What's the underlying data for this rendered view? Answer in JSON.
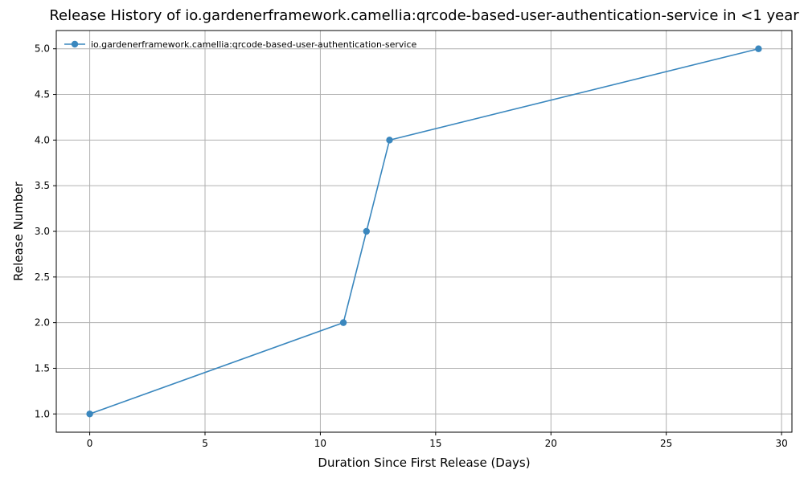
{
  "chart_data": {
    "type": "line",
    "title": "Release History of io.gardenerframework.camellia:qrcode-based-user-authentication-service in <1 year",
    "xlabel": "Duration Since First Release (Days)",
    "ylabel": "Release Number",
    "xlim": [
      -1.45,
      30.45
    ],
    "ylim": [
      0.8,
      5.2
    ],
    "xticks": [
      0,
      5,
      10,
      15,
      20,
      25,
      30
    ],
    "xtick_labels": [
      "0",
      "5",
      "10",
      "15",
      "20",
      "25",
      "30"
    ],
    "yticks": [
      1.0,
      1.5,
      2.0,
      2.5,
      3.0,
      3.5,
      4.0,
      4.5,
      5.0
    ],
    "ytick_labels": [
      "1.0",
      "1.5",
      "2.0",
      "2.5",
      "3.0",
      "3.5",
      "4.0",
      "4.5",
      "5.0"
    ],
    "grid": true,
    "legend_position": "top-left",
    "series": [
      {
        "name": "io.gardenerframework.camellia:qrcode-based-user-authentication-service",
        "color": "#3a87be",
        "marker": "circle",
        "x": [
          0,
          11,
          12,
          13,
          29
        ],
        "y": [
          1,
          2,
          3,
          4,
          5
        ]
      }
    ]
  }
}
